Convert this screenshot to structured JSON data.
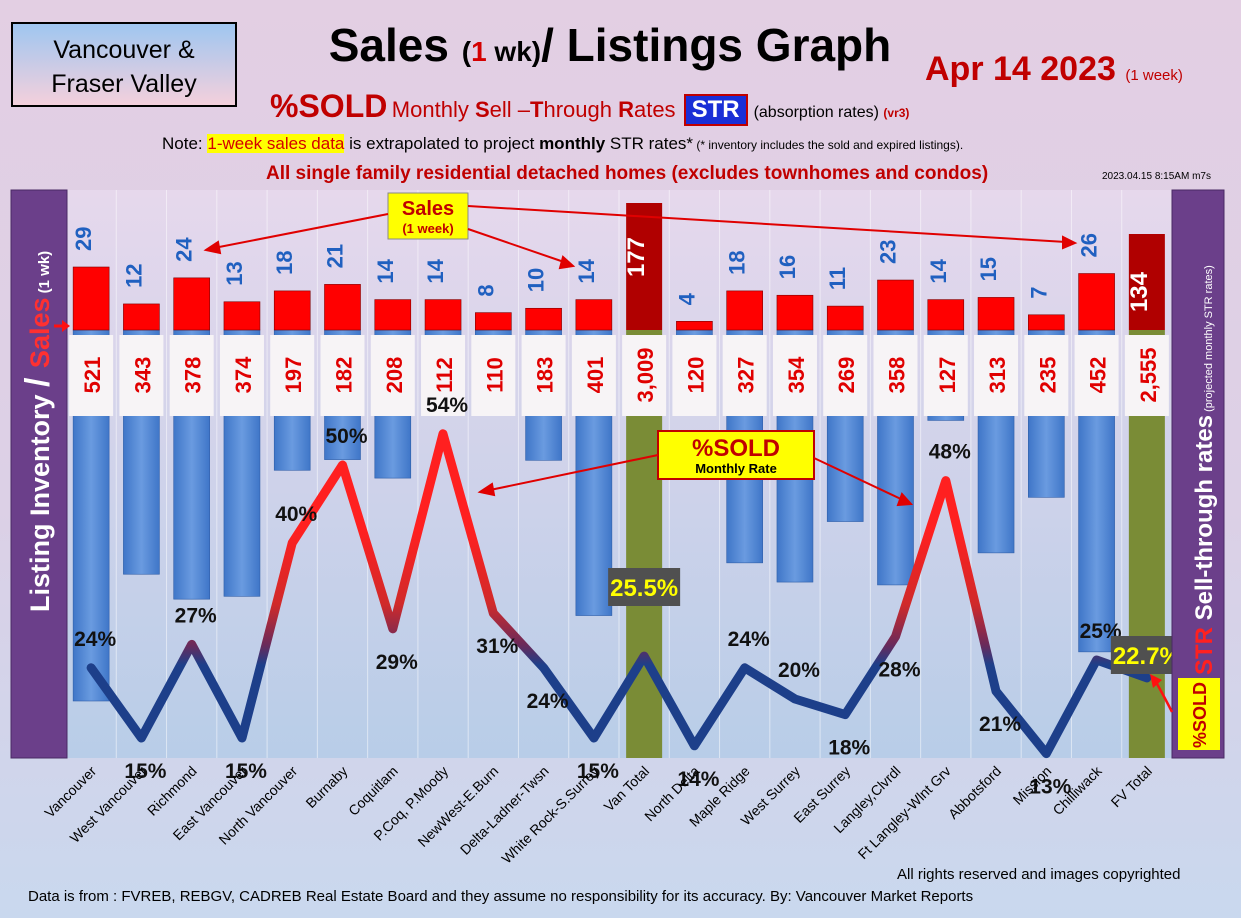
{
  "header": {
    "region_line1": "Vancouver &",
    "region_line2": "Fraser Valley",
    "title_main": "Sales ",
    "title_paren_open": "(",
    "title_num": "1",
    "title_wk": " wk)",
    "title_rest": "/ Listings Graph",
    "date": "Apr 14  2023",
    "date_note": "(1 week)",
    "sub_sold": "%SOLD",
    "sub_m": "Monthly ",
    "sub_S": "S",
    "sub_ell": "ell –",
    "sub_T": "T",
    "sub_hrough": "hrough ",
    "sub_R": "R",
    "sub_ates": "ates",
    "sub_str": "STR",
    "sub_abs": "(absorption rates)",
    "sub_vr": "(vr3)",
    "note_pre": "Note: ",
    "note_hl": "1-week sales data",
    "note_mid": " is extrapolated to project ",
    "note_bold": "monthly",
    "note_post": " STR rates*",
    "note_small": " (* inventory includes the sold and expired listings).",
    "subtitle": "All single family residential detached homes (excludes townhomes and condos)",
    "stamp": "2023.04.15 8:15AM m7s"
  },
  "chart_data": {
    "type": "bar",
    "ylabel_left_main": "Listing Inventory ",
    "ylabel_left_slash": "/ ",
    "ylabel_left_sales": "Sales",
    "ylabel_left_small": " (1 wk)",
    "ylabel_right_str": "STR",
    "ylabel_right_main": " Sell-through rates",
    "ylabel_right_small": " (projected monthly STR rates)",
    "sold_badge": "%SOLD",
    "categories": [
      "Vancouver",
      "West Vancouver",
      "Richmond",
      "East Vancouver",
      "North Vancouver",
      "Burnaby",
      "Coquitlam",
      "P.Coq, P.Moody",
      "NewWest-E.Burn",
      "Delta-Ladner-Twsn",
      "White Rock-S.Surrey",
      "Van Total",
      "North Delta",
      "Maple Ridge",
      "West Surrey",
      "East Surrey",
      "Langley,Clvrdl",
      "Ft Langley-Wlnt Grv",
      "Abbotsford",
      "Mission",
      "Chilliwack",
      "FV Total"
    ],
    "totals": [
      false,
      false,
      false,
      false,
      false,
      false,
      false,
      false,
      false,
      false,
      false,
      true,
      false,
      false,
      false,
      false,
      false,
      false,
      false,
      false,
      false,
      true
    ],
    "series": [
      {
        "name": "Sales",
        "values": [
          29,
          12,
          24,
          13,
          18,
          21,
          14,
          14,
          8,
          10,
          14,
          177,
          4,
          18,
          16,
          11,
          23,
          14,
          15,
          7,
          26,
          134
        ]
      },
      {
        "name": "Listing Inventory",
        "values": [
          521,
          343,
          378,
          374,
          197,
          182,
          208,
          112,
          110,
          183,
          401,
          3009,
          120,
          327,
          354,
          269,
          358,
          127,
          313,
          235,
          452,
          2555
        ]
      },
      {
        "name": "%SOLD",
        "values": [
          24,
          15,
          27,
          15,
          40,
          50,
          29,
          54,
          31,
          24,
          15,
          25.5,
          14,
          24,
          20,
          18,
          28,
          48,
          21,
          13,
          25,
          22.7
        ]
      }
    ],
    "sold_labels": [
      "24%",
      "15%",
      "27%",
      "15%",
      "40%",
      "50%",
      "29%",
      "54%",
      "31%",
      "24%",
      "15%",
      "25.5%",
      "14%",
      "24%",
      "20%",
      "18%",
      "28%",
      "48%",
      "21%",
      "13%",
      "25%",
      "22.7%"
    ],
    "inventory_labels": [
      "521",
      "343",
      "378",
      "374",
      "197",
      "182",
      "208",
      "112",
      "110",
      "183",
      "401",
      "3,009",
      "120",
      "327",
      "354",
      "269",
      "358",
      "127",
      "313",
      "235",
      "452",
      "2,555"
    ],
    "annotations": {
      "sales_callout_1": "Sales",
      "sales_callout_2": "(1 week)",
      "sold_callout_1": "%SOLD",
      "sold_callout_2": "Monthly Rate"
    }
  },
  "footer": {
    "rights": "All rights reserved and  images copyrighted",
    "source": "Data is from : FVREB, REBGV, CADREB Real Estate Board and they assume no responsibility for its accuracy. By: Vancouver Market Reports"
  },
  "colors": {
    "sales": "#ff0000",
    "inventory": "#4f86d6",
    "total": "#7a8c36",
    "total_sales": "#b00000",
    "line_hi": "#ee2222",
    "line_lo": "#1d3f8a",
    "side_panel": "#6b3f8a"
  }
}
